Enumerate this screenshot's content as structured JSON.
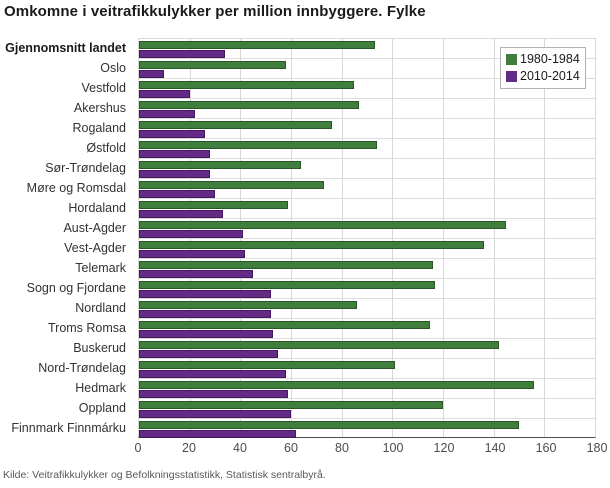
{
  "title": "Omkomne i veitrafikkulykker per million innbyggere. Fylke",
  "source": "Kilde: Veitrafikkulykker og Befolkningsstatistikk, Statistisk sentralbyrå.",
  "colors": {
    "series_1980_fill": "#3f7e3d",
    "series_1980_border": "#2a5527",
    "series_2010_fill": "#632a86",
    "series_2010_border": "#41195c",
    "gridline": "#d9d9d9",
    "axis_line": "#4d4d4d",
    "tick_text": "#4d4d4d",
    "label_text": "#333333"
  },
  "chart_data": {
    "type": "bar",
    "orientation": "horizontal",
    "title": "Omkomne i veitrafikkulykker per million innbyggere. Fylke",
    "xlabel": "",
    "ylabel": "",
    "xlim": [
      0,
      180
    ],
    "xticks": [
      0,
      20,
      40,
      60,
      80,
      100,
      120,
      140,
      160,
      180
    ],
    "grid": true,
    "legend_position": "top-right",
    "categories": [
      "Gjennomsnitt landet",
      "Oslo",
      "Vestfold",
      "Akershus",
      "Rogaland",
      "Østfold",
      "Sør-Trøndelag",
      "Møre og Romsdal",
      "Hordaland",
      "Aust-Agder",
      "Vest-Agder",
      "Telemark",
      "Sogn og Fjordane",
      "Nordland",
      "Troms Romsa",
      "Buskerud",
      "Nord-Trøndelag",
      "Hedmark",
      "Oppland",
      "Finnmark Finnmárku"
    ],
    "series": [
      {
        "name": "1980-1984",
        "color": "#3f7e3d",
        "border": "#2a5527",
        "values": [
          93,
          58,
          85,
          87,
          76,
          94,
          64,
          73,
          59,
          145,
          136,
          116,
          117,
          86,
          115,
          142,
          101,
          156,
          120,
          150
        ]
      },
      {
        "name": "2010-2014",
        "color": "#632a86",
        "border": "#41195c",
        "values": [
          34,
          10,
          20,
          22,
          26,
          28,
          28,
          30,
          33,
          41,
          42,
          45,
          52,
          52,
          53,
          55,
          58,
          59,
          60,
          62
        ]
      }
    ]
  }
}
